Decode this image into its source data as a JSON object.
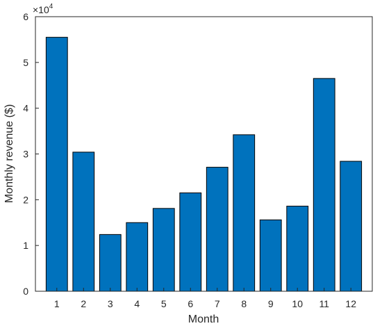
{
  "chart_data": {
    "type": "bar",
    "categories": [
      "1",
      "2",
      "3",
      "4",
      "5",
      "6",
      "7",
      "8",
      "9",
      "10",
      "11",
      "12"
    ],
    "values": [
      55500,
      30400,
      12400,
      15000,
      18100,
      21500,
      27100,
      34200,
      15600,
      18600,
      46500,
      28400
    ],
    "xlabel": "Month",
    "ylabel": "Monthly revenue ($)",
    "ylim": [
      0,
      60000
    ],
    "yticks": [
      0,
      10000,
      20000,
      30000,
      40000,
      50000,
      60000
    ],
    "ytick_labels": [
      "0",
      "1",
      "2",
      "3",
      "4",
      "5",
      "6"
    ],
    "y_exponent": {
      "base": "×10",
      "power": "4"
    },
    "bar_color": "#0072BD",
    "grid": false,
    "legend": "none"
  }
}
